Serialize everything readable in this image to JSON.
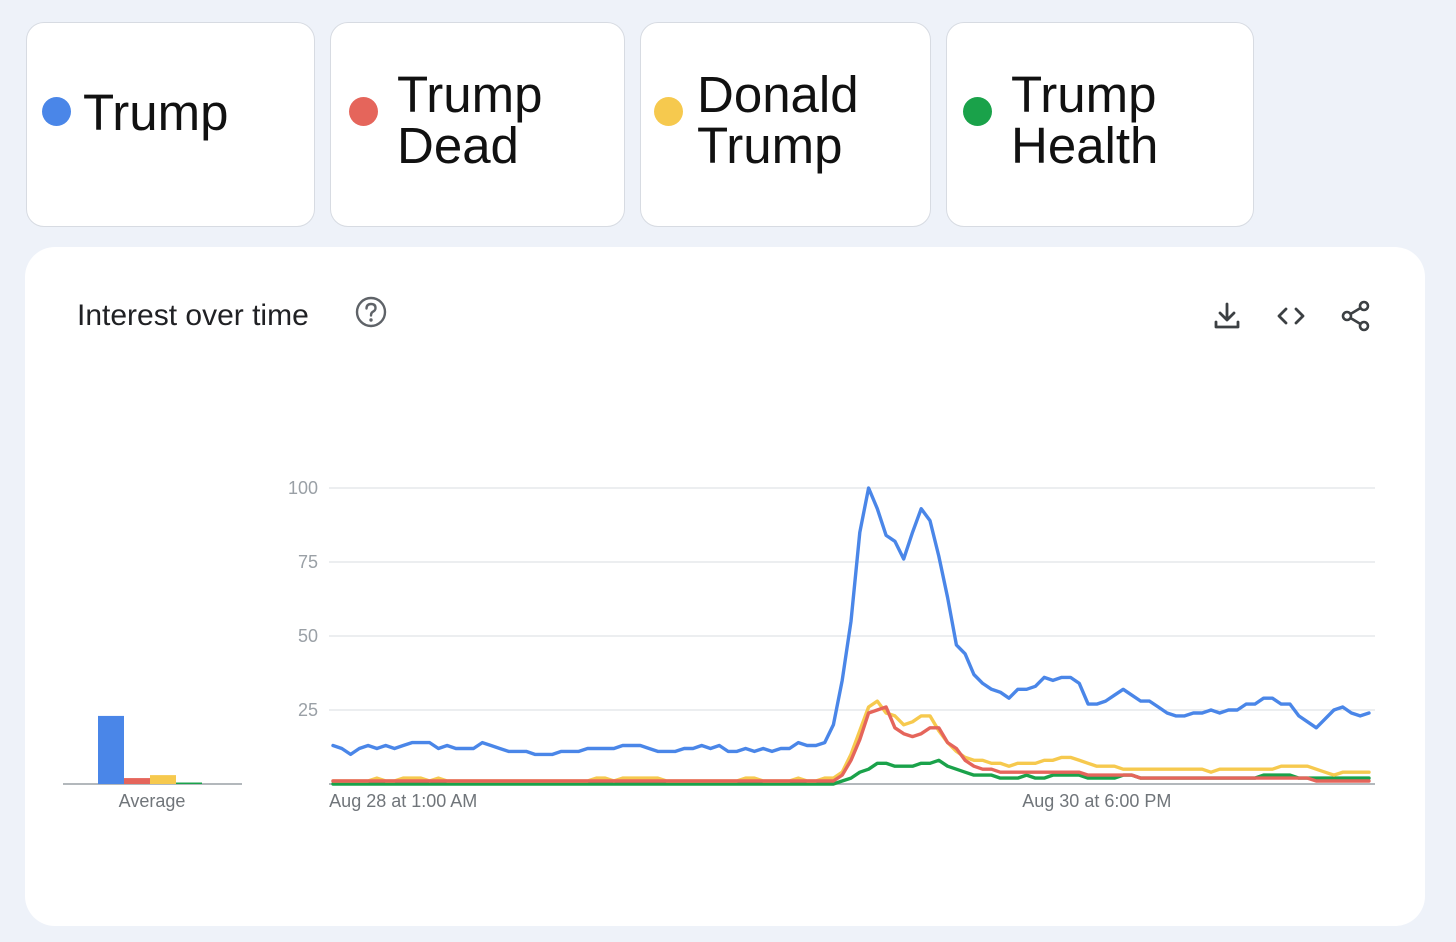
{
  "terms": [
    {
      "label": "Trump",
      "color": "#4a86e8"
    },
    {
      "label": "Trump\nDead",
      "color": "#e5655b"
    },
    {
      "label": "Donald\nTrump",
      "color": "#f6c94e"
    },
    {
      "label": "Trump\nHealth",
      "color": "#1aa24a"
    }
  ],
  "panel": {
    "title": "Interest over time",
    "help_icon": "question-circle-icon",
    "tools": [
      "download-icon",
      "embed-code-icon",
      "share-icon"
    ]
  },
  "chart_data": [
    {
      "type": "bar",
      "categories": [
        "Trump",
        "Trump Dead",
        "Donald Trump",
        "Trump Health"
      ],
      "values": [
        23,
        2,
        3,
        0.5
      ],
      "xlabel": "Average",
      "ylim": [
        0,
        100
      ]
    },
    {
      "type": "line",
      "yticks": [
        25,
        50,
        75,
        100
      ],
      "ylim": [
        0,
        100
      ],
      "x_tick_labels": [
        {
          "index": 8,
          "label": "Aug 28 at 1:00 AM"
        },
        {
          "index": 87,
          "label": "Aug 30 at 6:00 PM"
        }
      ],
      "series": [
        {
          "name": "Trump",
          "color": "#4a86e8",
          "values": [
            13,
            12,
            10,
            12,
            13,
            12,
            13,
            12,
            13,
            14,
            14,
            14,
            12,
            13,
            12,
            12,
            12,
            14,
            13,
            12,
            11,
            11,
            11,
            10,
            10,
            10,
            11,
            11,
            11,
            12,
            12,
            12,
            12,
            13,
            13,
            13,
            12,
            11,
            11,
            11,
            12,
            12,
            13,
            12,
            13,
            11,
            11,
            12,
            11,
            12,
            11,
            12,
            12,
            14,
            13,
            13,
            14,
            20,
            35,
            55,
            85,
            100,
            93,
            84,
            82,
            76,
            85,
            93,
            89,
            77,
            63,
            47,
            44,
            37,
            34,
            32,
            31,
            29,
            32,
            32,
            33,
            36,
            35,
            36,
            36,
            34,
            27,
            27,
            28,
            30,
            32,
            30,
            28,
            28,
            26,
            24,
            23,
            23,
            24,
            24,
            25,
            24,
            25,
            25,
            27,
            27,
            29,
            29,
            27,
            27,
            23,
            21,
            19,
            22,
            25,
            26,
            24,
            23,
            24
          ]
        },
        {
          "name": "Trump Dead",
          "color": "#e5655b",
          "values": [
            1,
            1,
            1,
            1,
            1,
            1,
            1,
            1,
            1,
            1,
            1,
            1,
            1,
            1,
            1,
            1,
            1,
            1,
            1,
            1,
            1,
            1,
            1,
            1,
            1,
            1,
            1,
            1,
            1,
            1,
            1,
            1,
            1,
            1,
            1,
            1,
            1,
            1,
            1,
            1,
            1,
            1,
            1,
            1,
            1,
            1,
            1,
            1,
            1,
            1,
            1,
            1,
            1,
            1,
            1,
            1,
            1,
            1,
            3,
            8,
            15,
            24,
            25,
            26,
            19,
            17,
            16,
            17,
            19,
            19,
            14,
            12,
            8,
            6,
            5,
            5,
            4,
            4,
            4,
            4,
            4,
            4,
            4,
            4,
            4,
            4,
            3,
            3,
            3,
            3,
            3,
            3,
            2,
            2,
            2,
            2,
            2,
            2,
            2,
            2,
            2,
            2,
            2,
            2,
            2,
            2,
            2,
            2,
            2,
            2,
            2,
            2,
            1,
            1,
            1,
            1,
            1,
            1,
            1
          ]
        },
        {
          "name": "Donald Trump",
          "color": "#f6c94e",
          "values": [
            1,
            1,
            1,
            1,
            1,
            2,
            1,
            1,
            2,
            2,
            2,
            1,
            2,
            1,
            1,
            1,
            1,
            1,
            1,
            1,
            1,
            1,
            1,
            1,
            1,
            1,
            1,
            1,
            1,
            1,
            2,
            2,
            1,
            2,
            2,
            2,
            2,
            2,
            1,
            1,
            1,
            1,
            1,
            1,
            1,
            1,
            1,
            2,
            2,
            1,
            1,
            1,
            1,
            2,
            1,
            1,
            2,
            2,
            4,
            10,
            18,
            26,
            28,
            24,
            23,
            20,
            21,
            23,
            23,
            18,
            14,
            11,
            9,
            8,
            8,
            7,
            7,
            6,
            7,
            7,
            7,
            8,
            8,
            9,
            9,
            8,
            7,
            6,
            6,
            6,
            5,
            5,
            5,
            5,
            5,
            5,
            5,
            5,
            5,
            5,
            4,
            5,
            5,
            5,
            5,
            5,
            5,
            5,
            6,
            6,
            6,
            6,
            5,
            4,
            3,
            4,
            4,
            4,
            4
          ]
        },
        {
          "name": "Trump Health",
          "color": "#1aa24a",
          "values": [
            0,
            0,
            0,
            0,
            0,
            0,
            0,
            0,
            0,
            0,
            0,
            0,
            0,
            0,
            0,
            0,
            0,
            0,
            0,
            0,
            0,
            0,
            0,
            0,
            0,
            0,
            0,
            0,
            0,
            0,
            0,
            0,
            0,
            0,
            0,
            0,
            0,
            0,
            0,
            0,
            0,
            0,
            0,
            0,
            0,
            0,
            0,
            0,
            0,
            0,
            0,
            0,
            0,
            0,
            0,
            0,
            0,
            0,
            1,
            2,
            4,
            5,
            7,
            7,
            6,
            6,
            6,
            7,
            7,
            8,
            6,
            5,
            4,
            3,
            3,
            3,
            2,
            2,
            2,
            3,
            2,
            2,
            3,
            3,
            3,
            3,
            2,
            2,
            2,
            2,
            3,
            3,
            2,
            2,
            2,
            2,
            2,
            2,
            2,
            2,
            2,
            2,
            2,
            2,
            2,
            2,
            3,
            3,
            3,
            3,
            2,
            2,
            2,
            2,
            2,
            2,
            2,
            2,
            2
          ]
        }
      ]
    }
  ]
}
